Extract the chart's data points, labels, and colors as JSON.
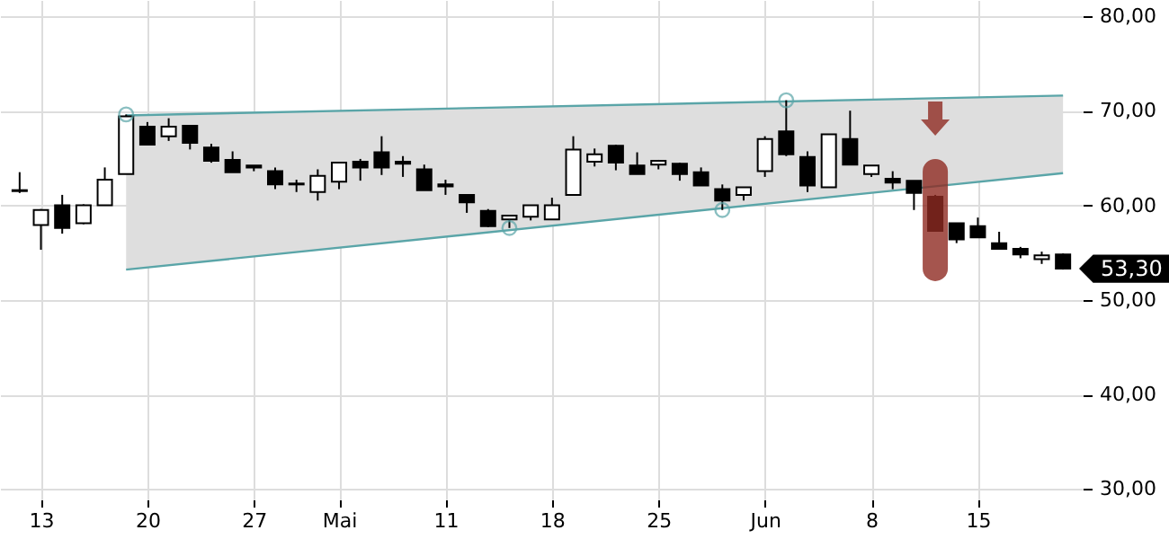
{
  "chart_data": {
    "type": "candlestick",
    "categories": [
      null,
      "13",
      null,
      null,
      null,
      null,
      "20",
      null,
      null,
      null,
      null,
      "27",
      null,
      null,
      null,
      "Mai",
      null,
      null,
      null,
      null,
      "11",
      null,
      null,
      null,
      null,
      "18",
      null,
      null,
      null,
      null,
      "25",
      null,
      null,
      null,
      null,
      "Jun",
      null,
      null,
      null,
      null,
      "8",
      null,
      null,
      null,
      null,
      "15",
      null,
      null,
      null,
      null
    ],
    "ohlc": [
      [
        61.6,
        63.5,
        61.3,
        61.5
      ],
      [
        57.9,
        59.6,
        55.3,
        59.5
      ],
      [
        60.0,
        61.1,
        57.0,
        57.6
      ],
      [
        58.1,
        60.1,
        58.0,
        60.0
      ],
      [
        60.0,
        64.0,
        60.0,
        62.7
      ],
      [
        63.3,
        69.6,
        63.3,
        69.4
      ],
      [
        68.3,
        68.8,
        66.4,
        66.4
      ],
      [
        67.3,
        69.2,
        66.8,
        68.3
      ],
      [
        68.4,
        68.4,
        65.9,
        66.6
      ],
      [
        66.1,
        66.5,
        64.5,
        64.7
      ],
      [
        64.8,
        65.7,
        63.5,
        63.5
      ],
      [
        64.2,
        64.2,
        63.6,
        64.0
      ],
      [
        63.6,
        64.0,
        61.7,
        62.2
      ],
      [
        62.3,
        62.7,
        61.4,
        62.2
      ],
      [
        61.4,
        63.8,
        60.5,
        63.1
      ],
      [
        62.5,
        64.5,
        61.7,
        64.5
      ],
      [
        64.6,
        64.9,
        62.6,
        64.0
      ],
      [
        65.6,
        67.3,
        63.2,
        64.0
      ],
      [
        64.6,
        65.2,
        63.0,
        64.4
      ],
      [
        63.8,
        64.3,
        61.6,
        61.6
      ],
      [
        62.2,
        62.7,
        61.1,
        62.0
      ],
      [
        61.1,
        61.1,
        59.2,
        60.3
      ],
      [
        59.4,
        59.6,
        57.7,
        57.8
      ],
      [
        58.5,
        59.0,
        57.6,
        58.9
      ],
      [
        58.8,
        60.0,
        58.4,
        60.0
      ],
      [
        58.5,
        60.8,
        58.5,
        60.0
      ],
      [
        61.1,
        67.3,
        61.1,
        65.9
      ],
      [
        64.6,
        66.0,
        64.1,
        65.4
      ],
      [
        66.3,
        66.4,
        63.7,
        64.5
      ],
      [
        64.2,
        65.6,
        63.3,
        63.3
      ],
      [
        64.3,
        64.8,
        63.8,
        64.7
      ],
      [
        64.4,
        64.5,
        62.6,
        63.3
      ],
      [
        63.5,
        64.0,
        62.1,
        62.1
      ],
      [
        61.7,
        62.2,
        59.5,
        60.5
      ],
      [
        61.1,
        61.9,
        60.5,
        61.9
      ],
      [
        63.6,
        67.3,
        63.0,
        67.0
      ],
      [
        67.8,
        71.1,
        65.2,
        65.4
      ],
      [
        65.1,
        65.7,
        61.4,
        62.1
      ],
      [
        61.9,
        67.5,
        61.9,
        67.5
      ],
      [
        67.0,
        70.0,
        64.3,
        64.3
      ],
      [
        63.3,
        64.2,
        63.0,
        64.2
      ],
      [
        62.8,
        63.6,
        61.7,
        62.4
      ],
      [
        62.6,
        62.6,
        59.5,
        61.3
      ],
      [
        60.9,
        61.1,
        57.3,
        57.3
      ],
      [
        58.1,
        58.1,
        56.0,
        56.4
      ],
      [
        57.8,
        58.7,
        56.6,
        56.6
      ],
      [
        56.0,
        57.2,
        55.4,
        55.4
      ],
      [
        55.4,
        55.6,
        54.4,
        54.8
      ],
      [
        54.3,
        55.1,
        53.8,
        54.7
      ],
      [
        54.8,
        54.9,
        53.2,
        53.3
      ]
    ],
    "series": [
      {
        "type": "line",
        "color": "#5aa5a8",
        "values": [
          null,
          null,
          null,
          null,
          null,
          69.5,
          null,
          null,
          null,
          null,
          null,
          null,
          null,
          null,
          null,
          null,
          null,
          null,
          null,
          null,
          null,
          null,
          null,
          null,
          null,
          null,
          null,
          null,
          null,
          null,
          null,
          null,
          null,
          null,
          null,
          null,
          null,
          null,
          null,
          null,
          null,
          null,
          null,
          null,
          null,
          null,
          null,
          null,
          null,
          71.6
        ],
        "lower": [
          null,
          null,
          null,
          null,
          null,
          53.2,
          null,
          null,
          null,
          null,
          null,
          null,
          null,
          null,
          null,
          null,
          null,
          null,
          null,
          null,
          null,
          null,
          null,
          null,
          null,
          null,
          null,
          null,
          null,
          null,
          null,
          null,
          null,
          null,
          null,
          null,
          null,
          null,
          null,
          null,
          null,
          null,
          null,
          null,
          null,
          null,
          null,
          null,
          null,
          63.4
        ],
        "upper": [
          null,
          null,
          null,
          null,
          null,
          69.5,
          null,
          null,
          null,
          null,
          null,
          null,
          null,
          null,
          null,
          null,
          null,
          null,
          null,
          null,
          null,
          null,
          null,
          null,
          null,
          null,
          null,
          null,
          null,
          null,
          null,
          null,
          null,
          null,
          null,
          null,
          null,
          null,
          null,
          null,
          null,
          null,
          null,
          null,
          null,
          null,
          null,
          null,
          null,
          71.6
        ]
      },
      {
        "type": "line",
        "color": "#5aa5a8",
        "values": [
          null,
          null,
          null,
          null,
          null,
          53.2,
          null,
          null,
          null,
          null,
          null,
          null,
          null,
          null,
          null,
          null,
          null,
          null,
          null,
          null,
          null,
          null,
          null,
          null,
          null,
          null,
          null,
          null,
          null,
          null,
          null,
          null,
          null,
          null,
          null,
          null,
          null,
          null,
          null,
          null,
          null,
          null,
          null,
          null,
          null,
          null,
          null,
          null,
          null,
          63.4
        ]
      },
      {
        "type": "scatter",
        "marker": "circle",
        "color": "#5aa5a8",
        "values": [
          null,
          null,
          null,
          null,
          null,
          69.6,
          null,
          null,
          null,
          null,
          null,
          null,
          null,
          null,
          null,
          null,
          null,
          null,
          null,
          null,
          null,
          null,
          null,
          57.6,
          null,
          null,
          null,
          null,
          null,
          null,
          null,
          null,
          null,
          59.5,
          null,
          null,
          71.1,
          null,
          null,
          null,
          null,
          null,
          null,
          null,
          null,
          null,
          null,
          null,
          null,
          null
        ]
      }
    ],
    "ylim": [
      28.9,
      81.7
    ],
    "yticks": [
      {
        "value": 30,
        "label": "30,00"
      },
      {
        "value": 40,
        "label": "40,00"
      },
      {
        "value": 50,
        "label": "50,00"
      },
      {
        "value": 60,
        "label": "60,00"
      },
      {
        "value": 70,
        "label": "70,00"
      },
      {
        "value": 80,
        "label": "80,00"
      }
    ],
    "grid": true,
    "annotations": [
      "53,30"
    ]
  }
}
